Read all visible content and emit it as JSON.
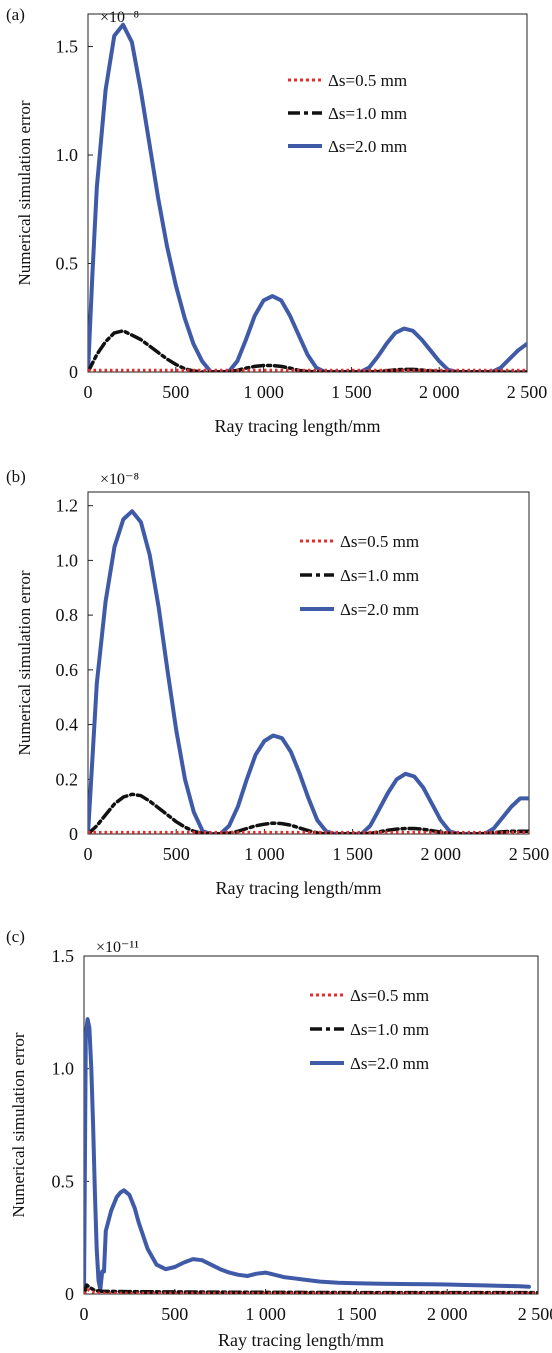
{
  "chart_data": [
    {
      "type": "line",
      "panel_label": "(a)",
      "multiplier": "×10⁻⁸",
      "xlabel": "Ray tracing length/mm",
      "ylabel": "Numerical simulation error",
      "xlim": [
        0,
        2500
      ],
      "ylim": [
        0,
        1.65
      ],
      "xticks": [
        0,
        500,
        1000,
        1500,
        2000,
        2500
      ],
      "xtick_labels": [
        "0",
        "500",
        "1 000",
        "1 500",
        "2 000",
        "2 500"
      ],
      "yticks": [
        0,
        0.5,
        1.0,
        1.5
      ],
      "ytick_labels": [
        "0",
        "0.5",
        "1.0",
        "1.5"
      ],
      "grid": false,
      "legend_position": "top-right",
      "series": [
        {
          "name": "Δs=0.5 mm",
          "color": "#e03030",
          "style": "dotted",
          "x": [
            0,
            2500
          ],
          "y": [
            0.008,
            0.008
          ]
        },
        {
          "name": "Δs=1.0 mm",
          "color": "#111111",
          "style": "dashdot",
          "x": [
            0,
            50,
            100,
            150,
            200,
            250,
            300,
            350,
            400,
            450,
            500,
            550,
            600,
            650,
            700,
            750,
            800,
            850,
            900,
            950,
            1000,
            1050,
            1100,
            1150,
            1200,
            1250,
            1300,
            1350,
            1400,
            1450,
            1500,
            1550,
            1600,
            1650,
            1700,
            1750,
            1800,
            1850,
            1900,
            1950,
            2000,
            2050,
            2100,
            2150,
            2200,
            2250,
            2300,
            2350,
            2400,
            2450,
            2500
          ],
          "y": [
            0.0,
            0.08,
            0.14,
            0.18,
            0.19,
            0.17,
            0.15,
            0.12,
            0.09,
            0.06,
            0.035,
            0.015,
            0.005,
            0.0,
            0.0,
            0.0,
            0.002,
            0.008,
            0.018,
            0.026,
            0.03,
            0.03,
            0.026,
            0.018,
            0.008,
            0.002,
            0.0,
            0.0,
            0.0,
            0.0,
            0.0,
            0.0,
            0.0,
            0.002,
            0.006,
            0.01,
            0.012,
            0.012,
            0.009,
            0.005,
            0.002,
            0.0,
            0.0,
            0.0,
            0.0,
            0.0,
            0.0,
            0.0,
            0.0,
            0.0,
            0.0
          ]
        },
        {
          "name": "Δs=2.0 mm",
          "color": "#3f5aa7",
          "style": "solid",
          "x": [
            0,
            25,
            50,
            100,
            150,
            200,
            250,
            300,
            350,
            400,
            450,
            500,
            550,
            600,
            650,
            700,
            750,
            800,
            850,
            900,
            950,
            1000,
            1050,
            1100,
            1150,
            1200,
            1250,
            1300,
            1350,
            1400,
            1450,
            1500,
            1550,
            1600,
            1650,
            1700,
            1750,
            1800,
            1850,
            1900,
            1950,
            2000,
            2050,
            2100,
            2150,
            2200,
            2250,
            2300,
            2350,
            2400,
            2450,
            2500
          ],
          "y": [
            0.0,
            0.45,
            0.85,
            1.3,
            1.55,
            1.6,
            1.52,
            1.3,
            1.05,
            0.8,
            0.58,
            0.4,
            0.25,
            0.13,
            0.05,
            0.0,
            0.0,
            0.0,
            0.05,
            0.15,
            0.26,
            0.33,
            0.35,
            0.33,
            0.26,
            0.17,
            0.08,
            0.02,
            0.0,
            0.0,
            0.0,
            0.0,
            0.0,
            0.02,
            0.07,
            0.13,
            0.18,
            0.2,
            0.19,
            0.15,
            0.1,
            0.05,
            0.01,
            0.0,
            0.0,
            0.0,
            0.0,
            0.0,
            0.02,
            0.06,
            0.1,
            0.13
          ]
        }
      ],
      "legend": [
        "Δs=0.5 mm",
        "Δs=1.0 mm",
        "Δs=2.0 mm"
      ]
    },
    {
      "type": "line",
      "panel_label": "(b)",
      "multiplier": "×10⁻⁸",
      "xlabel": "Ray tracing length/mm",
      "ylabel": "Numerical simulation error",
      "xlim": [
        0,
        2500
      ],
      "ylim": [
        0,
        1.25
      ],
      "xticks": [
        0,
        500,
        1000,
        1500,
        2000,
        2500
      ],
      "xtick_labels": [
        "0",
        "500",
        "1 000",
        "1 500",
        "2 000",
        "2 500"
      ],
      "yticks": [
        0,
        0.2,
        0.4,
        0.6,
        0.8,
        1.0,
        1.2
      ],
      "ytick_labels": [
        "0",
        "0.2",
        "0.4",
        "0.6",
        "0.8",
        "1.0",
        "1.2"
      ],
      "grid": false,
      "legend_position": "top-right",
      "series": [
        {
          "name": "Δs=0.5 mm",
          "color": "#e03030",
          "style": "dotted",
          "x": [
            0,
            2500
          ],
          "y": [
            0.006,
            0.006
          ]
        },
        {
          "name": "Δs=1.0 mm",
          "color": "#111111",
          "style": "dashdot",
          "x": [
            0,
            50,
            100,
            150,
            200,
            250,
            300,
            350,
            400,
            450,
            500,
            550,
            600,
            650,
            700,
            750,
            800,
            850,
            900,
            950,
            1000,
            1050,
            1100,
            1150,
            1200,
            1250,
            1300,
            1350,
            1400,
            1450,
            1500,
            1550,
            1600,
            1650,
            1700,
            1750,
            1800,
            1850,
            1900,
            1950,
            2000,
            2050,
            2100,
            2150,
            2200,
            2250,
            2300,
            2350,
            2400,
            2450,
            2500
          ],
          "y": [
            0.0,
            0.03,
            0.07,
            0.11,
            0.135,
            0.145,
            0.14,
            0.12,
            0.095,
            0.07,
            0.045,
            0.025,
            0.01,
            0.002,
            0.0,
            0.0,
            0.003,
            0.01,
            0.02,
            0.03,
            0.036,
            0.04,
            0.038,
            0.032,
            0.022,
            0.012,
            0.004,
            0.0,
            0.0,
            0.0,
            0.0,
            0.0,
            0.002,
            0.008,
            0.014,
            0.018,
            0.02,
            0.02,
            0.017,
            0.012,
            0.007,
            0.003,
            0.0,
            0.0,
            0.0,
            0.002,
            0.005,
            0.008,
            0.01,
            0.01,
            0.01
          ]
        },
        {
          "name": "Δs=2.0 mm",
          "color": "#3f5aa7",
          "style": "solid",
          "x": [
            0,
            50,
            100,
            150,
            200,
            250,
            300,
            350,
            400,
            450,
            500,
            550,
            600,
            650,
            700,
            750,
            800,
            850,
            900,
            950,
            1000,
            1050,
            1100,
            1150,
            1200,
            1250,
            1300,
            1350,
            1400,
            1450,
            1500,
            1550,
            1600,
            1650,
            1700,
            1750,
            1800,
            1850,
            1900,
            1950,
            2000,
            2050,
            2100,
            2150,
            2200,
            2250,
            2300,
            2350,
            2400,
            2450,
            2500
          ],
          "y": [
            0.0,
            0.55,
            0.85,
            1.05,
            1.15,
            1.18,
            1.14,
            1.02,
            0.83,
            0.6,
            0.38,
            0.2,
            0.08,
            0.01,
            0.0,
            0.0,
            0.03,
            0.1,
            0.2,
            0.29,
            0.34,
            0.36,
            0.35,
            0.3,
            0.22,
            0.13,
            0.05,
            0.01,
            0.0,
            0.0,
            0.0,
            0.0,
            0.03,
            0.09,
            0.15,
            0.2,
            0.22,
            0.21,
            0.17,
            0.11,
            0.05,
            0.01,
            0.0,
            0.0,
            0.0,
            0.0,
            0.02,
            0.06,
            0.1,
            0.13,
            0.13
          ]
        }
      ],
      "legend": [
        "Δs=0.5 mm",
        "Δs=1.0 mm",
        "Δs=2.0 mm"
      ]
    },
    {
      "type": "line",
      "panel_label": "(c)",
      "multiplier": "×10⁻¹¹",
      "xlabel": "Ray tracing length/mm",
      "ylabel": "Numerical simulation error",
      "xlim": [
        0,
        2500
      ],
      "ylim": [
        0,
        1.5
      ],
      "xticks": [
        0,
        500,
        1000,
        1500,
        2000,
        2500
      ],
      "xtick_labels": [
        "0",
        "500",
        "1 000",
        "1 500",
        "2 000",
        "2 500"
      ],
      "yticks": [
        0,
        0.5,
        1.0,
        1.5
      ],
      "ytick_labels": [
        "0",
        "0.5",
        "1.0",
        "1.5"
      ],
      "grid": false,
      "legend_position": "top-right",
      "series": [
        {
          "name": "Δs=0.5 mm",
          "color": "#e03030",
          "style": "dotted",
          "x": [
            0,
            20,
            40,
            80,
            2500
          ],
          "y": [
            0.0,
            0.02,
            0.01,
            0.004,
            0.004
          ]
        },
        {
          "name": "Δs=1.0 mm",
          "color": "#111111",
          "style": "dashdot",
          "x": [
            0,
            15,
            30,
            60,
            100,
            300,
            800,
            1500,
            2500
          ],
          "y": [
            0.0,
            0.04,
            0.03,
            0.015,
            0.012,
            0.01,
            0.008,
            0.006,
            0.006
          ]
        },
        {
          "name": "Δs=2.0 mm",
          "color": "#3f5aa7",
          "style": "solid",
          "x": [
            0,
            10,
            20,
            30,
            40,
            50,
            60,
            70,
            80,
            90,
            100,
            110,
            120,
            150,
            180,
            200,
            220,
            250,
            280,
            300,
            350,
            400,
            450,
            500,
            550,
            600,
            650,
            700,
            750,
            800,
            850,
            900,
            950,
            1000,
            1050,
            1100,
            1150,
            1200,
            1250,
            1300,
            1400,
            1500,
            1600,
            1700,
            1800,
            1900,
            2000,
            2100,
            2200,
            2300,
            2400,
            2450
          ],
          "y": [
            0.0,
            1.15,
            1.22,
            1.18,
            1.0,
            0.75,
            0.45,
            0.2,
            0.06,
            0.02,
            0.1,
            0.1,
            0.28,
            0.37,
            0.43,
            0.45,
            0.46,
            0.44,
            0.38,
            0.32,
            0.2,
            0.13,
            0.11,
            0.12,
            0.14,
            0.155,
            0.15,
            0.13,
            0.11,
            0.095,
            0.085,
            0.08,
            0.09,
            0.095,
            0.085,
            0.075,
            0.07,
            0.065,
            0.06,
            0.055,
            0.05,
            0.048,
            0.046,
            0.045,
            0.044,
            0.043,
            0.042,
            0.04,
            0.038,
            0.036,
            0.034,
            0.032
          ]
        }
      ],
      "legend": [
        "Δs=0.5 mm",
        "Δs=1.0 mm",
        "Δs=2.0 mm"
      ]
    }
  ]
}
